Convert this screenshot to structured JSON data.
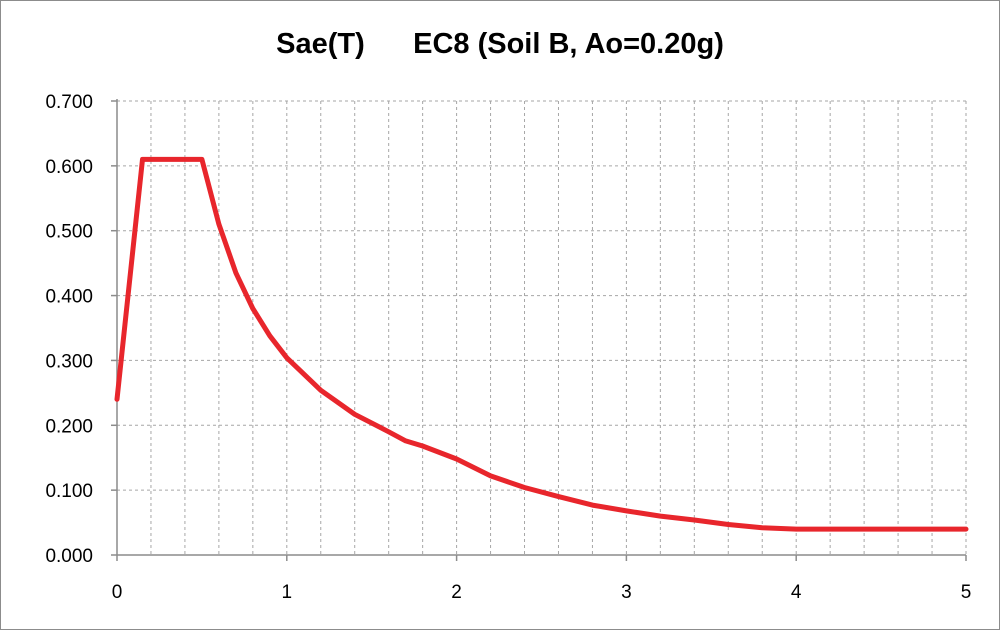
{
  "chart_data": {
    "type": "line",
    "title": "Sae(T)      EC8 (Soil B, Ao=0.20g)",
    "xlabel": "",
    "ylabel": "",
    "xlim": [
      0,
      5
    ],
    "ylim": [
      0,
      0.7
    ],
    "x_ticks": [
      "0",
      "1",
      "2",
      "3",
      "4",
      "5"
    ],
    "y_ticks": [
      "0.000",
      "0.100",
      "0.200",
      "0.300",
      "0.400",
      "0.500",
      "0.600",
      "0.700"
    ],
    "grid": true,
    "legend": "none",
    "colors": {
      "series": "#e8262c",
      "grid": "#a6a6a6",
      "axis": "#8c8c8c"
    },
    "series": [
      {
        "x": [
          0,
          0.15,
          0.5,
          0.6,
          0.7,
          0.8,
          0.9,
          1.0,
          1.2,
          1.4,
          1.6,
          1.7,
          1.8,
          2.0,
          2.2,
          2.4,
          2.6,
          2.8,
          3.0,
          3.2,
          3.4,
          3.6,
          3.8,
          4.0,
          4.5,
          5.0
        ],
        "y": [
          0.24,
          0.61,
          0.61,
          0.51,
          0.435,
          0.38,
          0.338,
          0.304,
          0.254,
          0.217,
          0.19,
          0.176,
          0.168,
          0.148,
          0.122,
          0.104,
          0.09,
          0.077,
          0.068,
          0.06,
          0.054,
          0.047,
          0.042,
          0.04,
          0.04,
          0.04
        ]
      }
    ]
  }
}
